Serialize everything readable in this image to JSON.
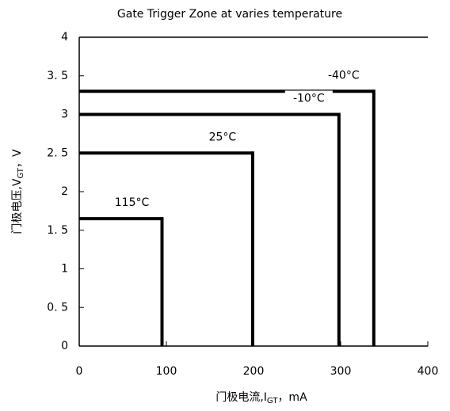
{
  "chart_data": {
    "type": "zone",
    "title": "Gate Trigger Zone at varies temperature",
    "x_label": {
      "main": "门极电流,I",
      "sub": "GT",
      "unit": "，mA"
    },
    "y_label": {
      "main": "门极电压,V",
      "sub": "GT",
      "unit": "，V"
    },
    "xlim": [
      0,
      400
    ],
    "ylim": [
      0,
      4
    ],
    "xticks": [
      0,
      100,
      200,
      300,
      400
    ],
    "yticks": [
      0,
      {
        "value": 0.5,
        "label": "0. 5"
      },
      1,
      {
        "value": 1.5,
        "label": "1. 5"
      },
      2,
      {
        "value": 2.5,
        "label": "2. 5"
      },
      3,
      {
        "value": 3.5,
        "label": "3. 5"
      },
      4
    ],
    "color": "#000000",
    "series": [
      {
        "name": "-40°C",
        "current": 338,
        "voltage": 3.3
      },
      {
        "name": "-10°C",
        "current": 298,
        "voltage": 3.0
      },
      {
        "name": "25°C",
        "current": 199,
        "voltage": 2.5
      },
      {
        "name": "115°C",
        "current": 95,
        "voltage": 1.65
      }
    ]
  }
}
